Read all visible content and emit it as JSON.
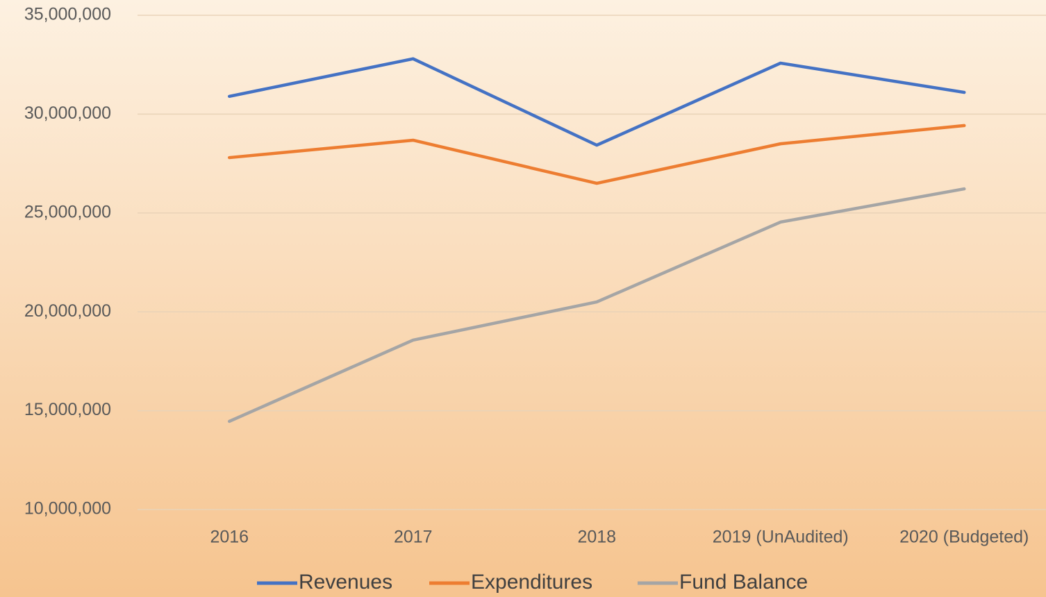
{
  "chart_data": {
    "type": "line",
    "categories": [
      "2016",
      "2017",
      "2018",
      "2019 (UnAudited)",
      "2020 (Budgeted)"
    ],
    "series": [
      {
        "name": "Revenues",
        "color": "#4472c4",
        "values": [
          30900000,
          32800000,
          28430000,
          32580000,
          31100000
        ]
      },
      {
        "name": "Expenditures",
        "color": "#ed7d31",
        "values": [
          27800000,
          28680000,
          26500000,
          28500000,
          29420000
        ]
      },
      {
        "name": "Fund Balance",
        "color": "#a5a5a5",
        "values": [
          14460000,
          18570000,
          20500000,
          24540000,
          26220000
        ]
      }
    ],
    "ylim": [
      10000000,
      35000000
    ],
    "yticks": [
      {
        "value": 10000000,
        "label": "10,000,000"
      },
      {
        "value": 15000000,
        "label": "15,000,000"
      },
      {
        "value": 20000000,
        "label": "20,000,000"
      },
      {
        "value": 25000000,
        "label": "25,000,000"
      },
      {
        "value": 30000000,
        "label": "30,000,000"
      },
      {
        "value": 35000000,
        "label": "35,000,000"
      }
    ],
    "grid": true,
    "legend": "bottom"
  }
}
